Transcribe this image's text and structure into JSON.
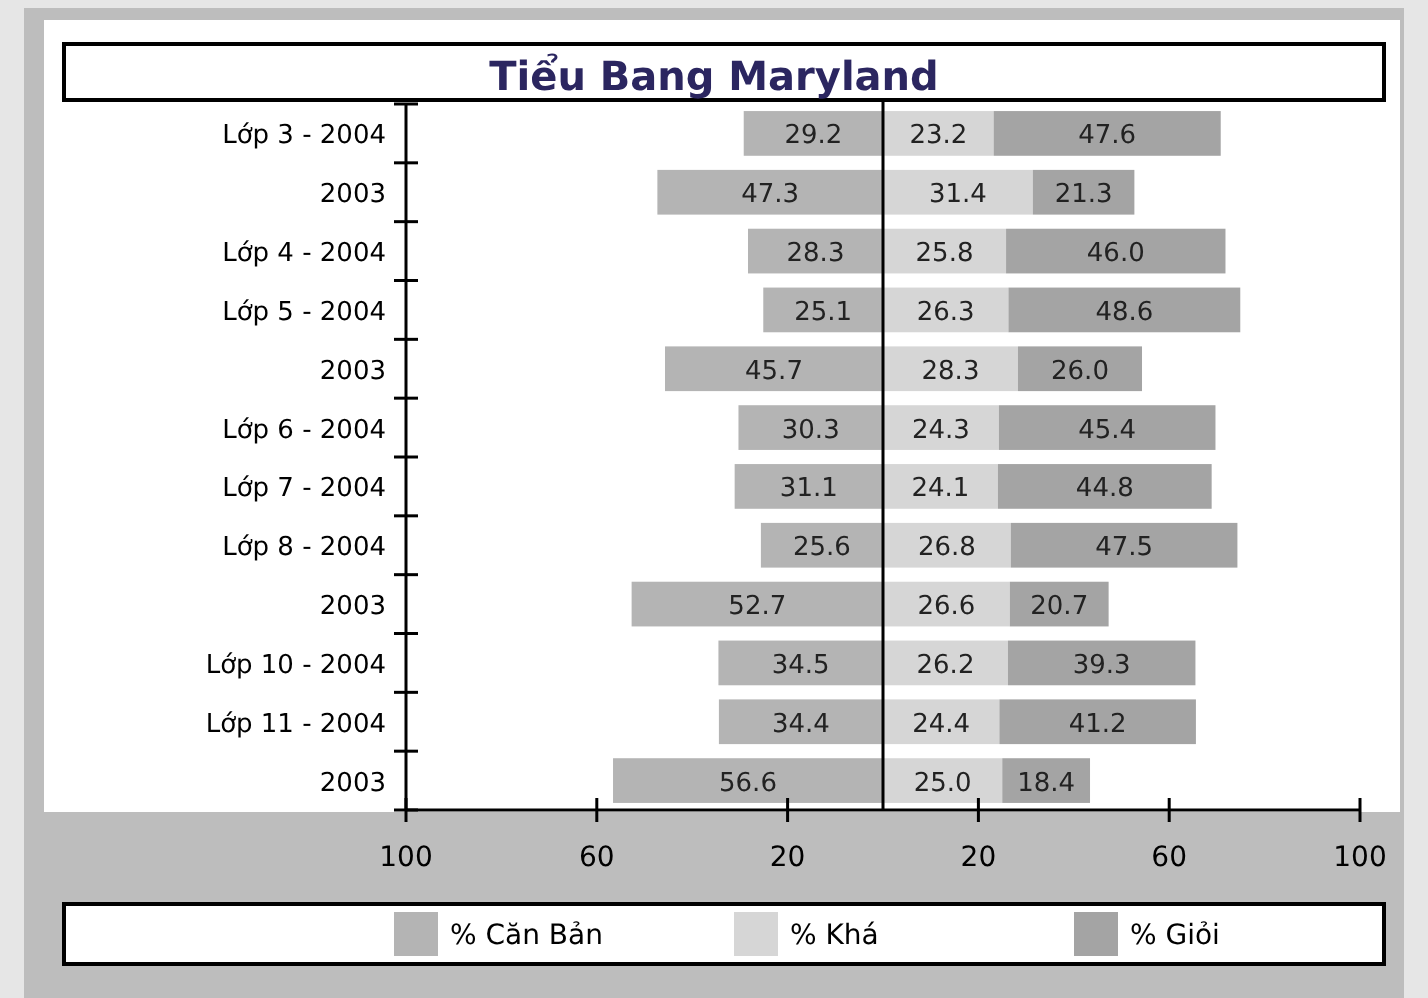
{
  "chart_data": {
    "type": "bar",
    "orientation": "horizontal",
    "title": "Tiểu Bang Maryland",
    "categories": [
      "Lớp 3 - 2004",
      "2003",
      "Lớp 4 - 2004",
      "Lớp 5 - 2004",
      "2003",
      "Lớp 6 - 2004",
      "Lớp 7 - 2004",
      "Lớp 8 - 2004",
      "2003",
      "Lớp 10 - 2004",
      "Lớp 11 - 2004",
      "2003"
    ],
    "series": [
      {
        "name": "% Căn Bản",
        "color": "#b4b4b4",
        "values": [
          29.2,
          47.3,
          28.3,
          25.1,
          45.7,
          30.3,
          31.1,
          25.6,
          52.7,
          34.5,
          34.4,
          56.6
        ],
        "value_labels": [
          "29.2",
          "47.3",
          "28.3",
          "25.1",
          "45.7",
          "30.3",
          "31.1",
          "25.6",
          "52.7",
          "34.5",
          "34.4",
          "56.6"
        ],
        "base": [
          -29.2,
          -47.3,
          -28.3,
          -25.1,
          -45.7,
          -30.3,
          -31.1,
          -25.6,
          -52.7,
          -34.5,
          -34.4,
          -56.6
        ]
      },
      {
        "name": "% Khá",
        "color": "#d6d6d6",
        "values": [
          23.2,
          31.4,
          25.8,
          26.3,
          28.3,
          24.3,
          24.1,
          26.8,
          26.6,
          26.2,
          24.4,
          25.0
        ],
        "value_labels": [
          "23.2",
          "31.4",
          "25.8",
          "26.3",
          "28.3",
          "24.3",
          "24.1",
          "26.8",
          "26.6",
          "26.2",
          "24.4",
          "25.0"
        ],
        "base": [
          0,
          0,
          0,
          0,
          0,
          0,
          0,
          0,
          0,
          0,
          0,
          0
        ]
      },
      {
        "name": "% Giỏi",
        "color": "#a4a4a4",
        "values": [
          47.6,
          21.3,
          46.0,
          48.6,
          26.0,
          45.4,
          44.8,
          47.5,
          20.7,
          39.3,
          41.2,
          18.4
        ],
        "value_labels": [
          "47.6",
          "21.3",
          "46.0",
          "48.6",
          "26.0",
          "45.4",
          "44.8",
          "47.5",
          "20.7",
          "39.3",
          "41.2",
          "18.4"
        ],
        "base": [
          23.2,
          31.4,
          25.8,
          26.3,
          28.3,
          24.3,
          24.1,
          26.8,
          26.6,
          26.2,
          24.4,
          25.0
        ]
      }
    ],
    "xlim": [
      -100,
      100
    ],
    "xticks": [
      {
        "value": -100,
        "label": "100"
      },
      {
        "value": -60,
        "label": "60"
      },
      {
        "value": -20,
        "label": "20"
      },
      {
        "value": 20,
        "label": "20"
      },
      {
        "value": 60,
        "label": "60"
      },
      {
        "value": 100,
        "label": "100"
      }
    ],
    "legend": "bottom",
    "grid": false
  }
}
